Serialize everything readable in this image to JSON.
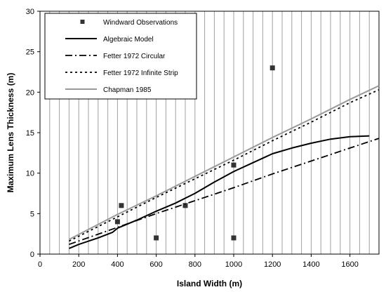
{
  "chart_data": {
    "type": "line",
    "title": "",
    "xlabel": "Island Width (m)",
    "ylabel": "Maximum Lens Thickness (m)",
    "xlim": [
      0,
      1750
    ],
    "ylim": [
      0,
      30
    ],
    "x_ticks": [
      0,
      200,
      400,
      600,
      800,
      1000,
      1200,
      1400,
      1600
    ],
    "y_ticks": [
      0,
      5,
      10,
      15,
      20,
      25,
      30
    ],
    "grid": "vertical",
    "legend_position": "top-left",
    "series": [
      {
        "name": "Windward Observations",
        "kind": "scatter",
        "color": "#333333",
        "x": [
          400,
          420,
          600,
          750,
          1000,
          1000,
          1200
        ],
        "y": [
          4,
          6,
          2,
          6,
          2,
          11,
          23
        ]
      },
      {
        "name": "Algebraic Model",
        "kind": "line",
        "style": "solid",
        "color": "#000000",
        "x": [
          150,
          200,
          300,
          375,
          400,
          500,
          600,
          700,
          800,
          900,
          1000,
          1100,
          1200,
          1300,
          1400,
          1500,
          1600,
          1700
        ],
        "y": [
          0.7,
          1.2,
          2.0,
          2.7,
          3.2,
          4.2,
          5.3,
          6.3,
          7.5,
          8.9,
          10.2,
          11.3,
          12.4,
          13.1,
          13.7,
          14.2,
          14.5,
          14.6
        ]
      },
      {
        "name": "Fetter 1972 Circular",
        "kind": "line",
        "style": "dashdot",
        "color": "#000000",
        "x": [
          150,
          400,
          600,
          800,
          1000,
          1200,
          1400,
          1600,
          1750
        ],
        "y": [
          1.2,
          3.3,
          5.0,
          6.6,
          8.2,
          9.9,
          11.5,
          13.1,
          14.3
        ]
      },
      {
        "name": "Fetter 1972 Infinite Strip",
        "kind": "line",
        "style": "dotted",
        "color": "#000000",
        "x": [
          150,
          400,
          600,
          800,
          1000,
          1200,
          1400,
          1600,
          1750
        ],
        "y": [
          1.6,
          4.6,
          7.0,
          9.3,
          11.6,
          14.0,
          16.3,
          18.7,
          20.3
        ]
      },
      {
        "name": "Chapman 1985",
        "kind": "line",
        "style": "solid",
        "color": "#999999",
        "x": [
          150,
          400,
          600,
          800,
          1000,
          1200,
          1400,
          1600,
          1750
        ],
        "y": [
          1.8,
          4.9,
          7.2,
          9.6,
          12.0,
          14.4,
          16.7,
          19.1,
          20.8
        ]
      }
    ]
  }
}
